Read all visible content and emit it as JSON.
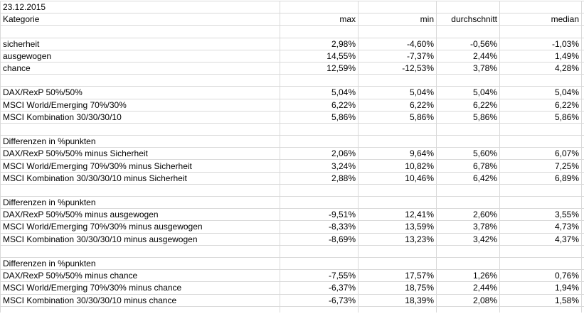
{
  "date_label": "23.12.2015",
  "table": {
    "headers": [
      "Kategorie",
      "max",
      "min",
      "durchschnitt",
      "median"
    ],
    "rows": [
      {
        "kind": "blank",
        "label": "",
        "values": [
          "",
          "",
          "",
          ""
        ]
      },
      {
        "kind": "data",
        "label": "sicherheit",
        "values": [
          "2,98%",
          "-4,60%",
          "-0,56%",
          "-1,03%"
        ]
      },
      {
        "kind": "data",
        "label": "ausgewogen",
        "values": [
          "14,55%",
          "-7,37%",
          "2,44%",
          "1,49%"
        ]
      },
      {
        "kind": "data",
        "label": "chance",
        "values": [
          "12,59%",
          "-12,53%",
          "3,78%",
          "4,28%"
        ]
      },
      {
        "kind": "blank",
        "label": "",
        "values": [
          "",
          "",
          "",
          ""
        ]
      },
      {
        "kind": "data",
        "label": "DAX/RexP 50%/50%",
        "values": [
          "5,04%",
          "5,04%",
          "5,04%",
          "5,04%"
        ]
      },
      {
        "kind": "data",
        "label": "MSCI World/Emerging 70%/30%",
        "values": [
          "6,22%",
          "6,22%",
          "6,22%",
          "6,22%"
        ]
      },
      {
        "kind": "data",
        "label": "MSCI Kombination 30/30/30/10",
        "values": [
          "5,86%",
          "5,86%",
          "5,86%",
          "5,86%"
        ]
      },
      {
        "kind": "blank",
        "label": "",
        "values": [
          "",
          "",
          "",
          ""
        ]
      },
      {
        "kind": "section",
        "label": "Differenzen in %punkten",
        "values": [
          "",
          "",
          "",
          ""
        ]
      },
      {
        "kind": "data",
        "label": "DAX/RexP 50%/50% minus Sicherheit",
        "values": [
          "2,06%",
          "9,64%",
          "5,60%",
          "6,07%"
        ],
        "fills": [
          "green-lo",
          "green-hi",
          "green-mid",
          "green-hi"
        ]
      },
      {
        "kind": "data",
        "label": "MSCI World/Emerging 70%/30% minus Sicherheit",
        "values": [
          "3,24%",
          "10,82%",
          "6,78%",
          "7,25%"
        ],
        "fills": [
          "green-lo",
          "green-hi",
          "green-mid",
          "green-hi"
        ]
      },
      {
        "kind": "data",
        "label": "MSCI Kombination 30/30/30/10 minus Sicherheit",
        "values": [
          "2,88%",
          "10,46%",
          "6,42%",
          "6,89%"
        ],
        "fills": [
          "green-lo",
          "green-hi",
          "green-mid",
          "green-hi"
        ]
      },
      {
        "kind": "blank",
        "label": "",
        "values": [
          "",
          "",
          "",
          ""
        ]
      },
      {
        "kind": "section",
        "label": "Differenzen in %punkten",
        "values": [
          "",
          "",
          "",
          ""
        ]
      },
      {
        "kind": "data",
        "label": "DAX/RexP 50%/50% minus ausgewogen",
        "values": [
          "-9,51%",
          "12,41%",
          "2,60%",
          "3,55%"
        ],
        "fills": [
          "red",
          "green-mid",
          "green-mid",
          "green-mid"
        ]
      },
      {
        "kind": "data",
        "label": "MSCI World/Emerging 70%/30% minus ausgewogen",
        "values": [
          "-8,33%",
          "13,59%",
          "3,78%",
          "4,73%"
        ],
        "fills": [
          "red",
          "green-mid",
          "green-mid",
          "green-mid"
        ]
      },
      {
        "kind": "data",
        "label": "MSCI Kombination 30/30/30/10 minus ausgewogen",
        "values": [
          "-8,69%",
          "13,23%",
          "3,42%",
          "4,37%"
        ],
        "fills": [
          "red",
          "green-mid",
          "green-mid",
          "green-mid"
        ]
      },
      {
        "kind": "blank",
        "label": "",
        "values": [
          "",
          "",
          "",
          ""
        ]
      },
      {
        "kind": "section",
        "label": "Differenzen in %punkten",
        "values": [
          "",
          "",
          "",
          ""
        ]
      },
      {
        "kind": "data",
        "label": "DAX/RexP 50%/50% minus chance",
        "values": [
          "-7,55%",
          "17,57%",
          "1,26%",
          "0,76%"
        ],
        "fills": [
          "red",
          "green-mid",
          "green-mid",
          "green-mid"
        ]
      },
      {
        "kind": "data",
        "label": "MSCI World/Emerging 70%/30% minus chance",
        "values": [
          "-6,37%",
          "18,75%",
          "2,44%",
          "1,94%"
        ],
        "fills": [
          "red",
          "green-mid",
          "green-mid",
          "green-mid"
        ]
      },
      {
        "kind": "data",
        "label": "MSCI Kombination 30/30/30/10 minus chance",
        "values": [
          "-6,73%",
          "18,39%",
          "2,08%",
          "1,58%"
        ],
        "fills": [
          "red",
          "green-mid",
          "green-mid",
          "green-mid"
        ]
      },
      {
        "kind": "blank",
        "label": "",
        "values": [
          "",
          "",
          "",
          ""
        ],
        "partial": true
      }
    ]
  },
  "colors": {
    "positive_fill": "#58e146",
    "positive_fill_light": "#d6f5cc",
    "negative_fill": "#f02b1d",
    "negative_fill_light": "#f6b1a8",
    "grid_line": "#d9d9d9",
    "border_black": "#000000",
    "text": "#000000",
    "background": "#ffffff"
  }
}
